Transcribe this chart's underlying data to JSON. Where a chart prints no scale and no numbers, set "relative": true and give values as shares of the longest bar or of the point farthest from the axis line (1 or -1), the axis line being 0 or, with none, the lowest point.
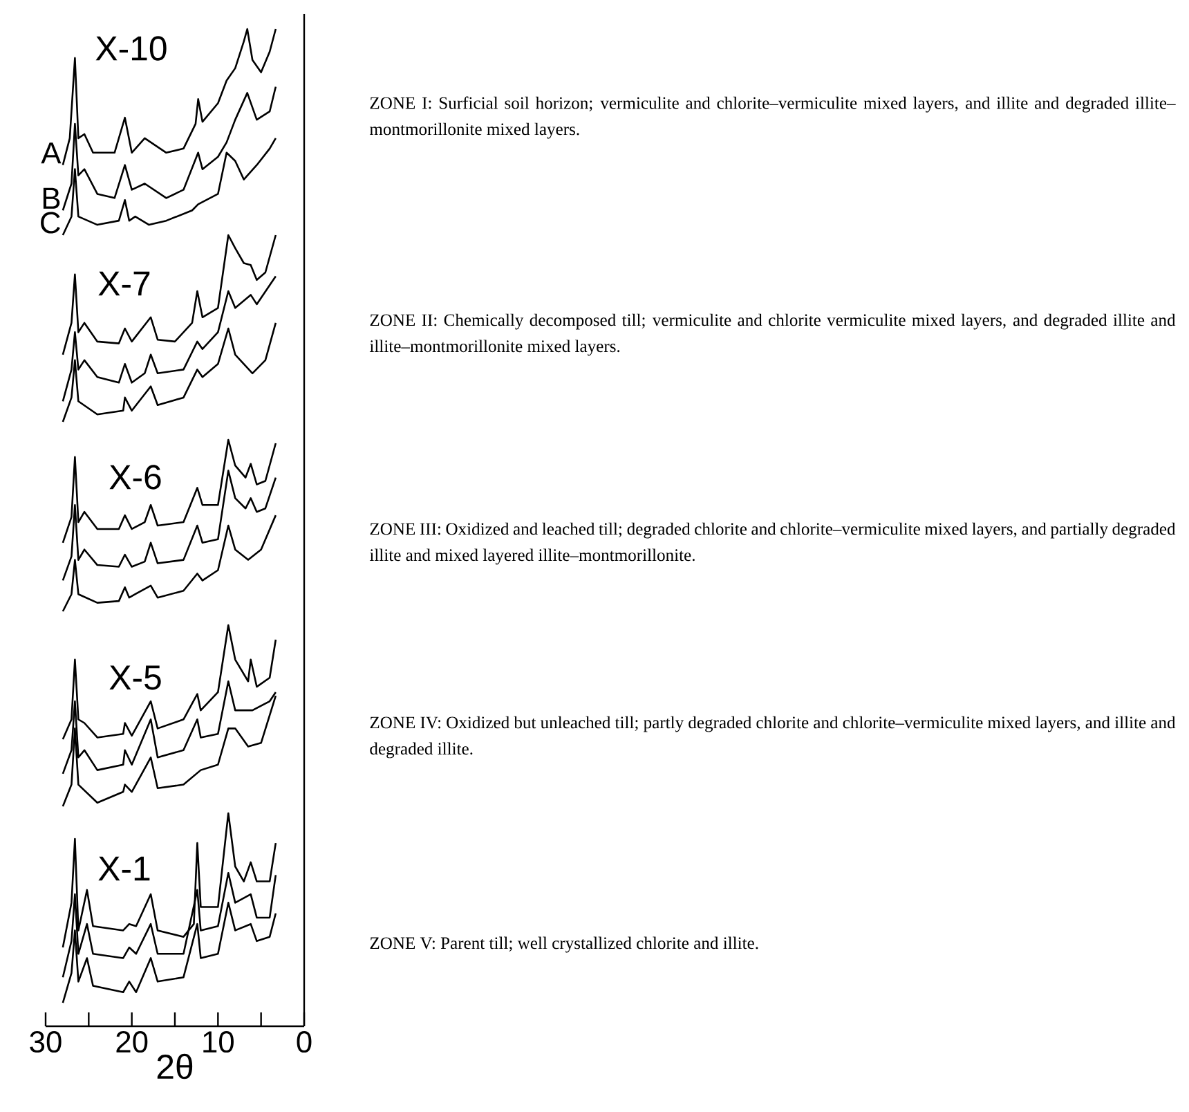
{
  "chart_data": [
    {
      "type": "line",
      "relative": true,
      "title": "X-10",
      "xlim": [
        30,
        0
      ],
      "tick_labels": false,
      "annotations": [
        "ZONE I: Surficial soil horizon; vermiculite and chlorite–vermiculite mixed layers, and illite and degraded illite–montmorillonite mixed layers."
      ],
      "series": [
        {
          "name": "A",
          "color": "#000000",
          "x": [
            28,
            27.2,
            26.6,
            26.2,
            25.5,
            24.5,
            22,
            20.8,
            20,
            18.5,
            16,
            14,
            12.6,
            12.3,
            11.8,
            10,
            9,
            8,
            7,
            6.6,
            6,
            5,
            4,
            3.3
          ],
          "values": [
            0.34,
            0.47,
            0.86,
            0.47,
            0.49,
            0.4,
            0.4,
            0.57,
            0.4,
            0.47,
            0.4,
            0.42,
            0.54,
            0.66,
            0.55,
            0.64,
            0.75,
            0.81,
            0.94,
            1.0,
            0.85,
            0.79,
            0.89,
            1.0
          ]
        },
        {
          "name": "B",
          "color": "#000000",
          "x": [
            28,
            27,
            26.6,
            26.2,
            25.5,
            24,
            22,
            20.8,
            20,
            18.5,
            16,
            14,
            12.3,
            11.8,
            10,
            9,
            8,
            6.6,
            5.5,
            4,
            3.3
          ],
          "values": [
            0.12,
            0.25,
            0.54,
            0.29,
            0.32,
            0.2,
            0.18,
            0.34,
            0.22,
            0.25,
            0.18,
            0.22,
            0.4,
            0.32,
            0.38,
            0.45,
            0.56,
            0.69,
            0.56,
            0.6,
            0.72
          ]
        },
        {
          "name": "C",
          "color": "#000000",
          "x": [
            28,
            27,
            26.6,
            26.2,
            24,
            21.5,
            20.8,
            20.3,
            19.6,
            18,
            16,
            13,
            12.3,
            10,
            9,
            8,
            7,
            5.5,
            4,
            3.3
          ],
          "values": [
            0,
            0.09,
            0.32,
            0.09,
            0.05,
            0.07,
            0.17,
            0.07,
            0.09,
            0.05,
            0.07,
            0.12,
            0.15,
            0.2,
            0.4,
            0.36,
            0.27,
            0.34,
            0.42,
            0.47
          ]
        }
      ]
    },
    {
      "type": "line",
      "relative": true,
      "title": "X-7",
      "xlim": [
        30,
        0
      ],
      "tick_labels": false,
      "annotations": [
        "ZONE II: Chemically decomposed till; vermiculite and chlorite vermiculite mixed layers, and degraded illite and illite–montmorillonite mixed layers."
      ],
      "series": [
        {
          "color": "#000000",
          "x": [
            28,
            27,
            26.6,
            26.2,
            25.5,
            24,
            21.5,
            20.8,
            20,
            17.8,
            17,
            15,
            13,
            12.4,
            11.8,
            10,
            8.8,
            8,
            7,
            6.2,
            5.5,
            4.5,
            3.3
          ],
          "values": [
            0.36,
            0.53,
            0.79,
            0.48,
            0.53,
            0.43,
            0.42,
            0.5,
            0.43,
            0.56,
            0.44,
            0.43,
            0.53,
            0.7,
            0.56,
            0.61,
            1.0,
            0.93,
            0.85,
            0.84,
            0.76,
            0.8,
            1.0
          ]
        },
        {
          "color": "#000000",
          "x": [
            28,
            27,
            26.6,
            26.2,
            25.5,
            24,
            21.5,
            20.8,
            20,
            18.5,
            17.8,
            17,
            14,
            12.4,
            11.8,
            10,
            8.8,
            8,
            6.2,
            5.5,
            3.3
          ],
          "values": [
            0.11,
            0.28,
            0.48,
            0.28,
            0.33,
            0.24,
            0.21,
            0.31,
            0.21,
            0.26,
            0.36,
            0.26,
            0.28,
            0.43,
            0.39,
            0.48,
            0.7,
            0.61,
            0.68,
            0.63,
            0.78
          ]
        },
        {
          "color": "#000000",
          "x": [
            28,
            27,
            26.6,
            26.2,
            24,
            21,
            20.8,
            20,
            17.8,
            17,
            14,
            12.4,
            11.8,
            10,
            8.8,
            8,
            6,
            4.5,
            3.3
          ],
          "values": [
            0,
            0.13,
            0.33,
            0.11,
            0.04,
            0.06,
            0.13,
            0.06,
            0.19,
            0.09,
            0.13,
            0.28,
            0.24,
            0.31,
            0.5,
            0.36,
            0.26,
            0.33,
            0.53
          ]
        }
      ]
    },
    {
      "type": "line",
      "relative": true,
      "title": "X-6",
      "xlim": [
        30,
        0
      ],
      "tick_labels": false,
      "annotations": [
        "ZONE III: Oxidized and leached till; degraded chlorite and chlorite–vermiculite mixed layers, and partially degraded illite and mixed layered illite–montmorillonite."
      ],
      "series": [
        {
          "color": "#000000",
          "x": [
            28,
            27,
            26.6,
            26.2,
            25.5,
            24,
            21.5,
            20.8,
            20,
            18.5,
            17.8,
            17,
            14,
            12.4,
            11.8,
            10,
            8.8,
            8,
            6.8,
            6.2,
            5.5,
            4.5,
            3.3
          ],
          "values": [
            0.4,
            0.55,
            0.9,
            0.52,
            0.58,
            0.48,
            0.48,
            0.56,
            0.48,
            0.52,
            0.62,
            0.5,
            0.52,
            0.72,
            0.62,
            0.62,
            1.0,
            0.85,
            0.78,
            0.86,
            0.74,
            0.76,
            0.98
          ]
        },
        {
          "color": "#000000",
          "x": [
            28,
            27,
            26.6,
            26.2,
            25.5,
            24,
            21.5,
            20.8,
            20,
            18.5,
            17.8,
            17,
            14,
            12.4,
            11.8,
            10,
            8.8,
            8,
            6.8,
            6.2,
            5.5,
            4.5,
            3.3
          ],
          "values": [
            0.18,
            0.32,
            0.62,
            0.3,
            0.36,
            0.27,
            0.26,
            0.33,
            0.26,
            0.29,
            0.4,
            0.28,
            0.3,
            0.5,
            0.4,
            0.42,
            0.82,
            0.66,
            0.6,
            0.66,
            0.58,
            0.6,
            0.78
          ]
        },
        {
          "color": "#000000",
          "x": [
            28,
            27,
            26.6,
            26.2,
            24,
            21.5,
            20.8,
            20.3,
            19.6,
            17.8,
            17,
            14,
            12.4,
            11.8,
            10,
            8.8,
            8,
            6.5,
            5,
            3.3
          ],
          "values": [
            0,
            0.1,
            0.3,
            0.1,
            0.05,
            0.06,
            0.14,
            0.08,
            0.1,
            0.15,
            0.08,
            0.12,
            0.22,
            0.18,
            0.24,
            0.5,
            0.36,
            0.3,
            0.36,
            0.56
          ]
        }
      ]
    },
    {
      "type": "line",
      "relative": true,
      "title": "X-5",
      "xlim": [
        30,
        0
      ],
      "tick_labels": false,
      "annotations": [
        "ZONE IV: Oxidized but unleached till; partly degraded chlorite and chlorite–vermiculite mixed layers, and illite and degraded illite."
      ],
      "series": [
        {
          "color": "#000000",
          "x": [
            28,
            27,
            26.6,
            26.2,
            25.5,
            24,
            21,
            20.8,
            20,
            17.8,
            17,
            14,
            12.4,
            12,
            10,
            8.8,
            8,
            6.5,
            6.2,
            5.5,
            4,
            3.3
          ],
          "values": [
            0.37,
            0.48,
            0.81,
            0.48,
            0.46,
            0.38,
            0.4,
            0.46,
            0.39,
            0.58,
            0.43,
            0.48,
            0.62,
            0.53,
            0.63,
            1.0,
            0.81,
            0.69,
            0.81,
            0.66,
            0.71,
            0.92
          ]
        },
        {
          "color": "#000000",
          "x": [
            28,
            27,
            26.6,
            26.2,
            25.5,
            24,
            21,
            20.8,
            20,
            17.8,
            17,
            14,
            12.4,
            12,
            10,
            8.8,
            8,
            6,
            4,
            3.3
          ],
          "values": [
            0.18,
            0.31,
            0.58,
            0.27,
            0.31,
            0.2,
            0.23,
            0.31,
            0.23,
            0.48,
            0.27,
            0.31,
            0.48,
            0.38,
            0.4,
            0.69,
            0.53,
            0.53,
            0.58,
            0.63
          ]
        },
        {
          "color": "#000000",
          "x": [
            28,
            27,
            26.6,
            26.2,
            24,
            21,
            20.8,
            20,
            17.8,
            17,
            14,
            12,
            10,
            8.8,
            8,
            6.5,
            5,
            3.3
          ],
          "values": [
            0,
            0.12,
            0.43,
            0.12,
            0.02,
            0.08,
            0.12,
            0.08,
            0.27,
            0.1,
            0.12,
            0.2,
            0.23,
            0.43,
            0.43,
            0.33,
            0.35,
            0.61
          ]
        }
      ]
    },
    {
      "type": "line",
      "relative": true,
      "title": "X-1",
      "xlim": [
        30,
        0
      ],
      "xticks": [
        30,
        {
          "value": 25,
          "label": null
        },
        20,
        {
          "value": 15,
          "label": null
        },
        10,
        {
          "value": 5,
          "label": null
        },
        0
      ],
      "xlabel": "2θ",
      "tick_labels": "x",
      "annotations": [
        "ZONE V: Parent till; well crystallized chlorite and illite."
      ],
      "series": [
        {
          "color": "#000000",
          "x": [
            28,
            27,
            26.6,
            26.2,
            25.2,
            24.5,
            21,
            20.3,
            19.5,
            17.8,
            17,
            14,
            12.8,
            12.4,
            12,
            10,
            8.8,
            8,
            7,
            6.2,
            5.5,
            4,
            3.3
          ],
          "values": [
            0.37,
            0.58,
            0.88,
            0.45,
            0.64,
            0.47,
            0.45,
            0.48,
            0.47,
            0.62,
            0.45,
            0.42,
            0.48,
            0.86,
            0.56,
            0.56,
            1.0,
            0.75,
            0.68,
            0.77,
            0.68,
            0.68,
            0.86
          ]
        },
        {
          "color": "#000000",
          "x": [
            28,
            27,
            26.6,
            26.2,
            25.2,
            24.5,
            21,
            20.3,
            19.5,
            17.8,
            17,
            14,
            12.4,
            12,
            10,
            8.8,
            8,
            6.2,
            5.5,
            4,
            3.3
          ],
          "values": [
            0.23,
            0.4,
            0.62,
            0.34,
            0.48,
            0.34,
            0.32,
            0.37,
            0.34,
            0.48,
            0.34,
            0.34,
            0.64,
            0.45,
            0.47,
            0.72,
            0.58,
            0.62,
            0.51,
            0.51,
            0.71
          ]
        },
        {
          "color": "#000000",
          "x": [
            28,
            27,
            26.6,
            26.2,
            25.2,
            24.5,
            21,
            20.3,
            19.5,
            17.8,
            17,
            14,
            12.4,
            12,
            10,
            8.8,
            8,
            6.2,
            5.5,
            4,
            3.3
          ],
          "values": [
            0.11,
            0.25,
            0.45,
            0.21,
            0.32,
            0.19,
            0.16,
            0.21,
            0.16,
            0.32,
            0.21,
            0.23,
            0.48,
            0.32,
            0.34,
            0.58,
            0.45,
            0.48,
            0.4,
            0.42,
            0.53
          ]
        }
      ]
    }
  ]
}
